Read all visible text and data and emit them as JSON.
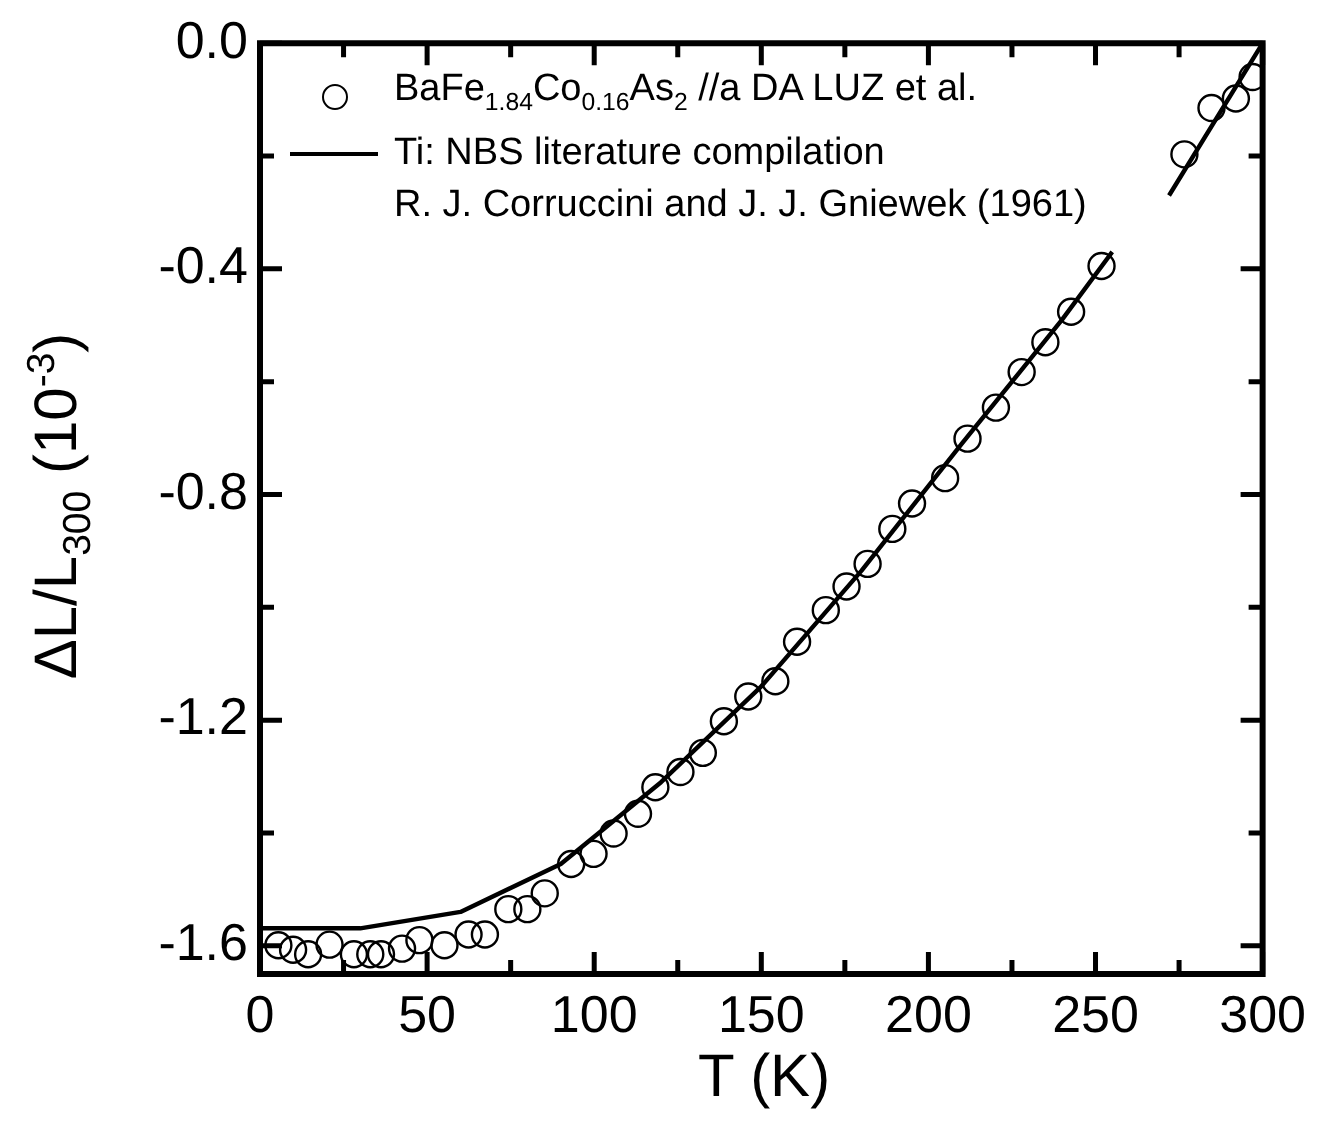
{
  "chart_data": {
    "type": "scatter",
    "xlabel": "T (K)",
    "ylabel": "ΔL/L$_{300}$ (10$^{-3}$)",
    "xlim": [
      0,
      300
    ],
    "ylim": [
      -1.65,
      0
    ],
    "xticks": [
      0,
      {
        "value": 25,
        "label": null
      },
      50,
      {
        "value": 75,
        "label": null
      },
      100,
      {
        "value": 125,
        "label": null
      },
      150,
      {
        "value": 175,
        "label": null
      },
      200,
      {
        "value": 225,
        "label": null
      },
      250,
      {
        "value": 275,
        "label": null
      },
      300
    ],
    "yticks": [
      -1.6,
      {
        "value": -1.4,
        "label": null
      },
      -1.2,
      {
        "value": -1.0,
        "label": null
      },
      -0.8,
      {
        "value": -0.6,
        "label": null
      },
      -0.4,
      {
        "value": -0.2,
        "label": null
      },
      {
        "value": 0,
        "label": "0.0"
      }
    ],
    "grid": false,
    "legend": "top left",
    "annotations": [
      "R. J. Corruccini and J. J. Gniewek (1961)"
    ],
    "series": [
      {
        "name": "BaFe$_{1.84}$Co$_{0.16}$As$_{2}$ //a DA LUZ et al.",
        "marker": "circle",
        "color": "#000000",
        "x": [
          5.5,
          9.9,
          14.4,
          20.8,
          28.1,
          33,
          36.2,
          42.5,
          47.7,
          55.2,
          62.4,
          67.3,
          74.3,
          80,
          85.2,
          93.1,
          99.8,
          105.8,
          113.1,
          118.3,
          125.8,
          132.5,
          138.8,
          146.1,
          154.2,
          160.7,
          169.3,
          175.5,
          181.8,
          189.2,
          195.1,
          205,
          211.7,
          220.2,
          227.9,
          235,
          242.7,
          251.8,
          276.6,
          284.7,
          292,
          297
        ],
        "values": [
          -1.599,
          -1.607,
          -1.615,
          -1.598,
          -1.615,
          -1.615,
          -1.615,
          -1.605,
          -1.59,
          -1.599,
          -1.58,
          -1.58,
          -1.535,
          -1.535,
          -1.507,
          -1.455,
          -1.437,
          -1.401,
          -1.366,
          -1.319,
          -1.292,
          -1.258,
          -1.202,
          -1.158,
          -1.131,
          -1.061,
          -1.005,
          -0.963,
          -0.923,
          -0.861,
          -0.816,
          -0.771,
          -0.701,
          -0.646,
          -0.583,
          -0.53,
          -0.476,
          -0.395,
          -0.197,
          -0.115,
          -0.098,
          -0.06
        ]
      },
      {
        "name": "Ti: NBS literature compilation",
        "type": "line",
        "marker": "none",
        "line_style": "solid",
        "color": "#000000",
        "x": [
          0,
          30,
          60,
          90,
          120,
          150,
          180,
          210,
          240,
          255,
          263,
          272,
          300
        ],
        "values": [
          -1.569,
          -1.569,
          -1.54,
          -1.455,
          -1.31,
          -1.14,
          -0.935,
          -0.71,
          -0.49,
          -0.37,
          null,
          -0.27,
          0.0
        ]
      }
    ]
  }
}
